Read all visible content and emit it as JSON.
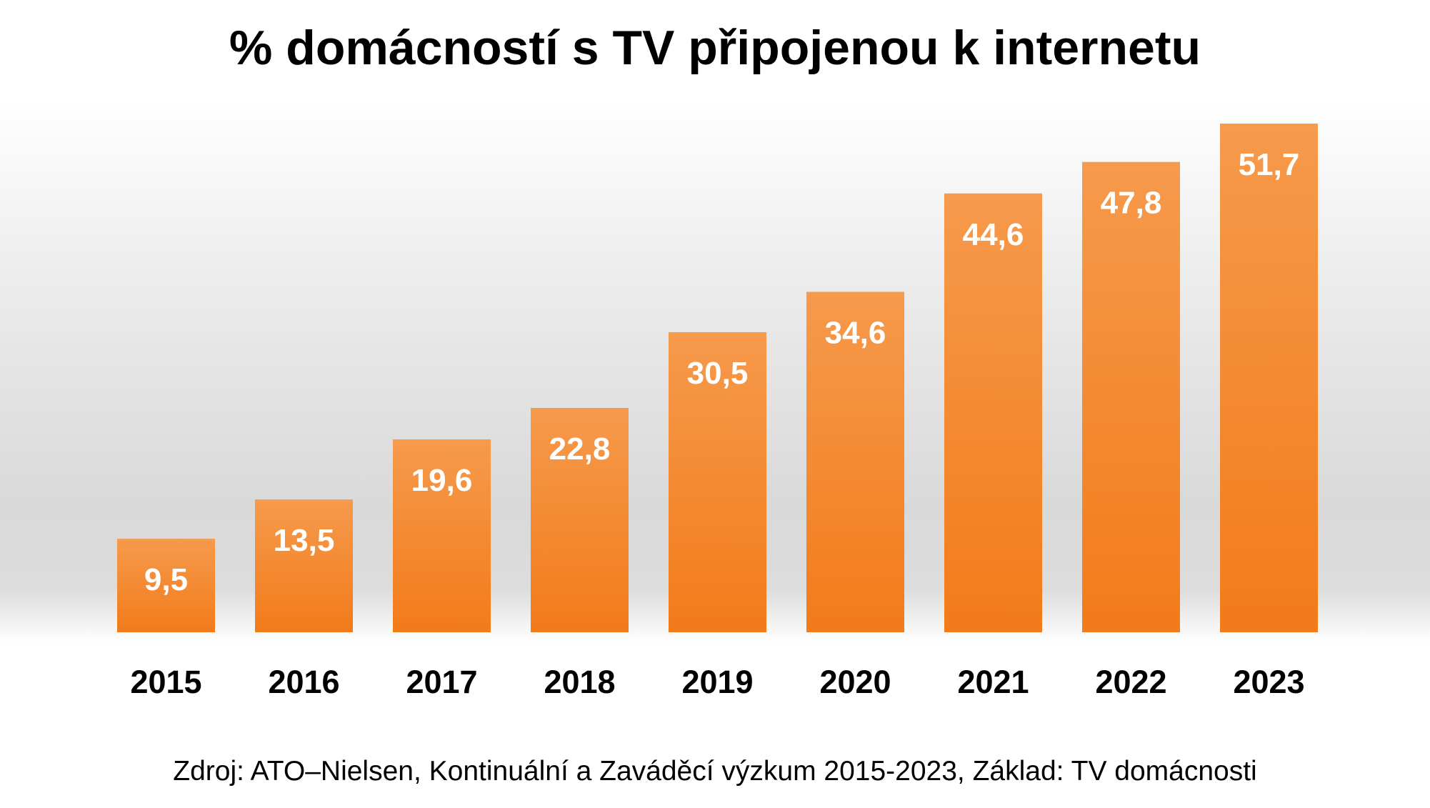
{
  "chart_data": {
    "type": "bar",
    "title": "% domácností s TV připojenou k internetu",
    "categories": [
      "2015",
      "2016",
      "2017",
      "2018",
      "2019",
      "2020",
      "2021",
      "2022",
      "2023"
    ],
    "values": [
      9.5,
      13.5,
      19.6,
      22.8,
      30.5,
      34.6,
      44.6,
      47.8,
      51.7
    ],
    "value_labels": [
      "9,5",
      "13,5",
      "19,6",
      "22,8",
      "30,5",
      "34,6",
      "44,6",
      "47,8",
      "51,7"
    ],
    "xlabel": "",
    "ylabel": "",
    "ylim": [
      0,
      51.7
    ],
    "grid": false,
    "legend": "none",
    "bar_color_top": "#f69a4c",
    "bar_color_bottom": "#f27b1a",
    "label_color": "#ffffff"
  },
  "source": "Zdroj: ATO–Nielsen, Kontinuální a Zaváděcí výzkum 2015-2023, Základ: TV domácnosti"
}
